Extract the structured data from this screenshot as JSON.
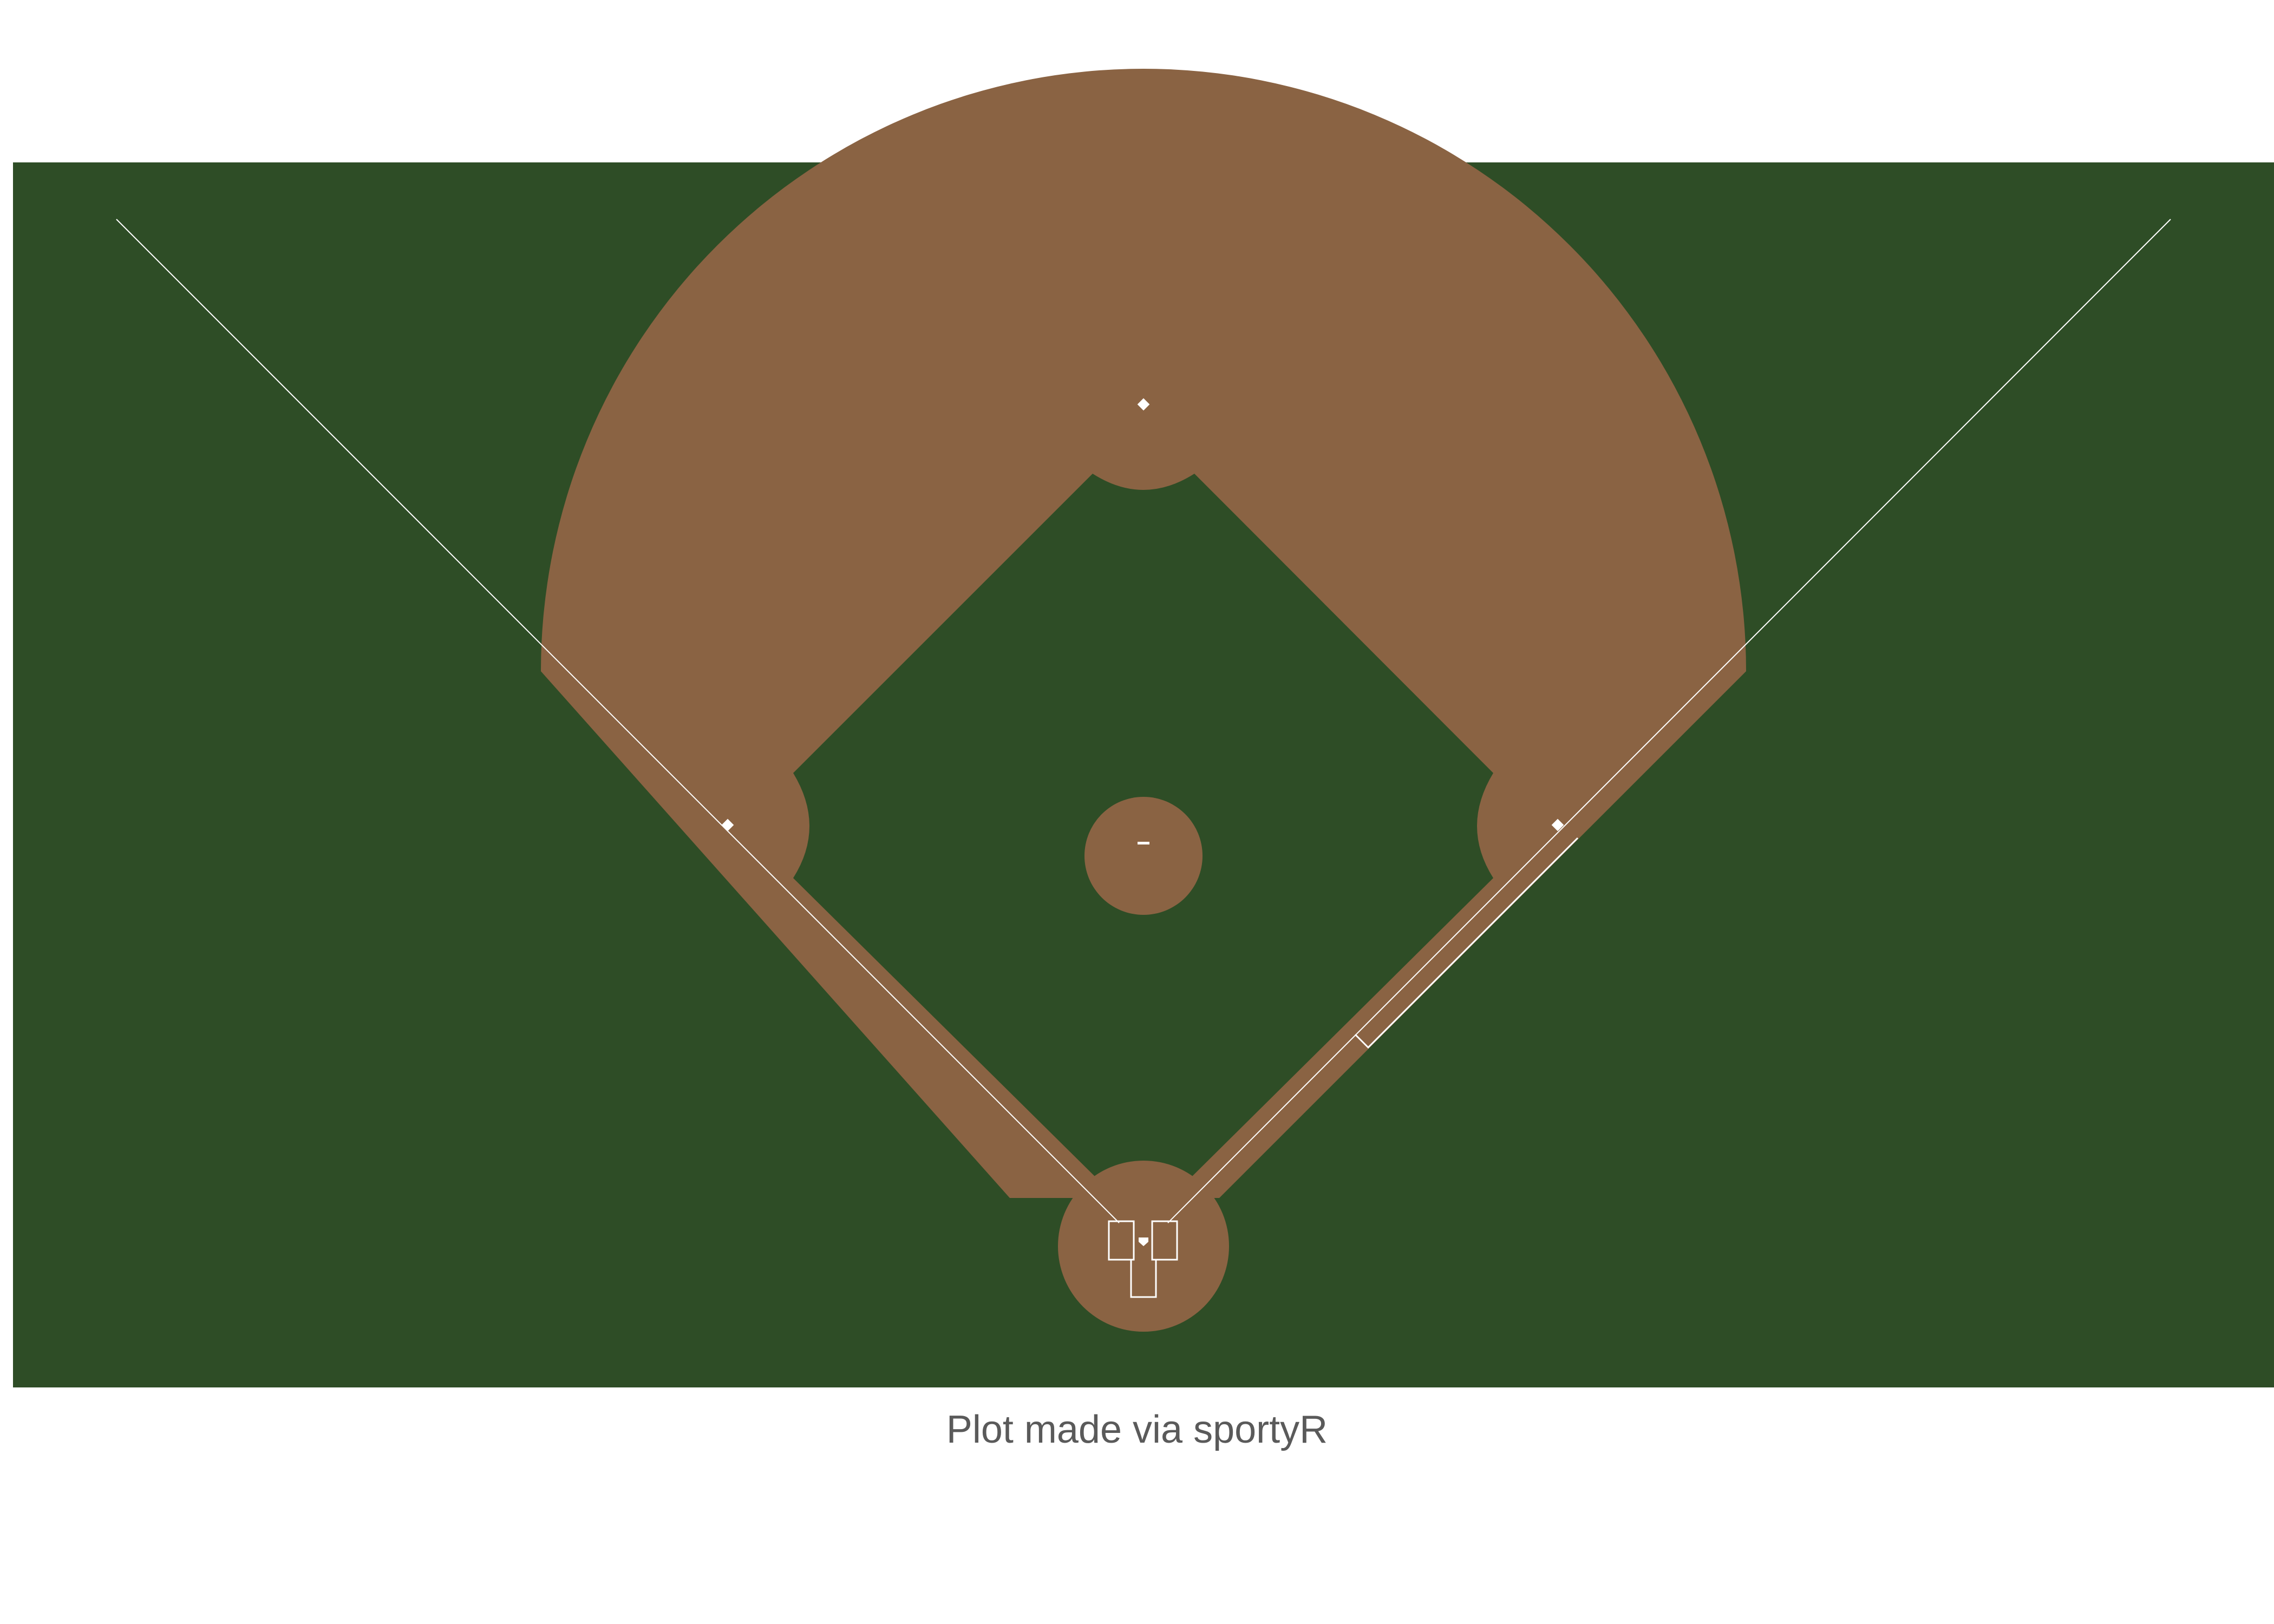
{
  "caption": "Plot made via sportyR",
  "colors": {
    "background": "#ffffff",
    "grass": "#2e4d26",
    "dirt": "#8a6343",
    "line": "#ffffff",
    "caption": "#5a5a5a"
  },
  "field_elements": [
    "foul-line-left",
    "foul-line-right",
    "infield-dirt",
    "infield-grass",
    "pitchers-mound",
    "pitchers-plate",
    "home-plate-circle",
    "home-plate",
    "batters-box-left",
    "batters-box-right",
    "catchers-box",
    "first-base",
    "second-base",
    "third-base",
    "running-lane"
  ]
}
